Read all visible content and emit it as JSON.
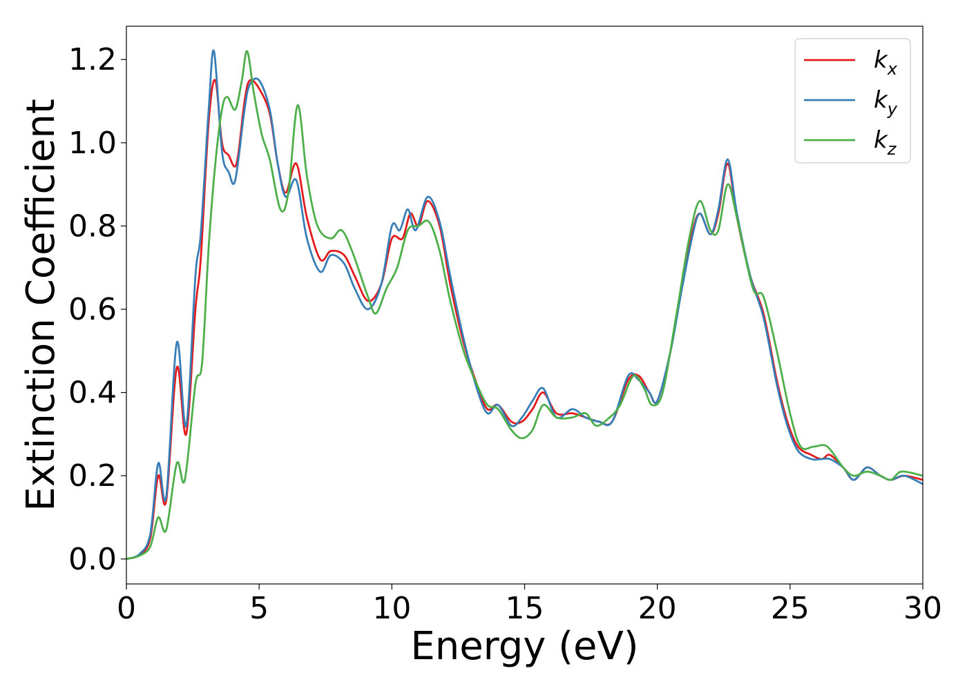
{
  "chart_data": {
    "type": "line",
    "title": "",
    "xlabel": "Energy (eV)",
    "ylabel": "Extinction Coefficient",
    "xlim": [
      0,
      30
    ],
    "ylim": [
      -0.06,
      1.28
    ],
    "xticks": [
      0,
      5,
      10,
      15,
      20,
      25,
      30
    ],
    "xtick_labels": [
      "0",
      "5",
      "10",
      "15",
      "20",
      "25",
      "30"
    ],
    "yticks": [
      0.0,
      0.2,
      0.4,
      0.6,
      0.8,
      1.0,
      1.2
    ],
    "ytick_labels": [
      "0.0",
      "0.2",
      "0.4",
      "0.6",
      "0.8",
      "1.0",
      "1.2"
    ],
    "grid": false,
    "legend_position": "top-right",
    "series": [
      {
        "name": "k_x",
        "label_base": "k",
        "label_sub": "x",
        "color": "#e41a1c",
        "points": [
          [
            0,
            0
          ],
          [
            0.5,
            0.01
          ],
          [
            0.9,
            0.05
          ],
          [
            1.2,
            0.2
          ],
          [
            1.5,
            0.14
          ],
          [
            1.9,
            0.46
          ],
          [
            2.25,
            0.3
          ],
          [
            2.6,
            0.6
          ],
          [
            2.8,
            0.72
          ],
          [
            3.1,
            1.05
          ],
          [
            3.35,
            1.15
          ],
          [
            3.6,
            1.0
          ],
          [
            3.85,
            0.97
          ],
          [
            4.15,
            0.95
          ],
          [
            4.45,
            1.1
          ],
          [
            4.65,
            1.15
          ],
          [
            5.0,
            1.13
          ],
          [
            5.4,
            1.07
          ],
          [
            5.7,
            0.95
          ],
          [
            6.0,
            0.88
          ],
          [
            6.4,
            0.95
          ],
          [
            6.8,
            0.82
          ],
          [
            7.3,
            0.72
          ],
          [
            7.7,
            0.74
          ],
          [
            8.2,
            0.73
          ],
          [
            8.6,
            0.68
          ],
          [
            9.1,
            0.62
          ],
          [
            9.6,
            0.66
          ],
          [
            10.0,
            0.77
          ],
          [
            10.4,
            0.77
          ],
          [
            10.7,
            0.83
          ],
          [
            11.0,
            0.8
          ],
          [
            11.35,
            0.86
          ],
          [
            11.8,
            0.8
          ],
          [
            12.2,
            0.66
          ],
          [
            12.7,
            0.52
          ],
          [
            13.2,
            0.42
          ],
          [
            13.6,
            0.36
          ],
          [
            14.0,
            0.37
          ],
          [
            14.5,
            0.33
          ],
          [
            14.9,
            0.33
          ],
          [
            15.3,
            0.36
          ],
          [
            15.7,
            0.4
          ],
          [
            16.2,
            0.35
          ],
          [
            16.8,
            0.35
          ],
          [
            17.3,
            0.34
          ],
          [
            17.8,
            0.33
          ],
          [
            18.3,
            0.33
          ],
          [
            18.9,
            0.43
          ],
          [
            19.3,
            0.44
          ],
          [
            19.7,
            0.4
          ],
          [
            20.0,
            0.38
          ],
          [
            20.5,
            0.5
          ],
          [
            20.9,
            0.65
          ],
          [
            21.3,
            0.78
          ],
          [
            21.6,
            0.83
          ],
          [
            22.0,
            0.78
          ],
          [
            22.3,
            0.83
          ],
          [
            22.65,
            0.95
          ],
          [
            23.0,
            0.82
          ],
          [
            23.5,
            0.68
          ],
          [
            24.0,
            0.59
          ],
          [
            24.5,
            0.43
          ],
          [
            24.9,
            0.33
          ],
          [
            25.3,
            0.27
          ],
          [
            25.8,
            0.25
          ],
          [
            26.2,
            0.24
          ],
          [
            26.5,
            0.25
          ],
          [
            27.0,
            0.22
          ],
          [
            27.4,
            0.19
          ],
          [
            27.9,
            0.22
          ],
          [
            28.4,
            0.2
          ],
          [
            28.8,
            0.19
          ],
          [
            29.3,
            0.2
          ],
          [
            30,
            0.19
          ]
        ]
      },
      {
        "name": "k_y",
        "label_base": "k",
        "label_sub": "y",
        "color": "#377eb8",
        "points": [
          [
            0,
            0
          ],
          [
            0.5,
            0.012
          ],
          [
            0.9,
            0.06
          ],
          [
            1.2,
            0.23
          ],
          [
            1.5,
            0.15
          ],
          [
            1.9,
            0.52
          ],
          [
            2.25,
            0.32
          ],
          [
            2.6,
            0.68
          ],
          [
            2.8,
            0.78
          ],
          [
            3.1,
            1.08
          ],
          [
            3.3,
            1.22
          ],
          [
            3.6,
            0.98
          ],
          [
            3.85,
            0.93
          ],
          [
            4.1,
            0.91
          ],
          [
            4.45,
            1.08
          ],
          [
            4.65,
            1.14
          ],
          [
            5.0,
            1.15
          ],
          [
            5.4,
            1.08
          ],
          [
            5.7,
            0.95
          ],
          [
            6.0,
            0.87
          ],
          [
            6.4,
            0.91
          ],
          [
            6.8,
            0.77
          ],
          [
            7.3,
            0.69
          ],
          [
            7.7,
            0.73
          ],
          [
            8.2,
            0.71
          ],
          [
            8.6,
            0.65
          ],
          [
            9.1,
            0.6
          ],
          [
            9.6,
            0.66
          ],
          [
            10.0,
            0.8
          ],
          [
            10.3,
            0.79
          ],
          [
            10.6,
            0.84
          ],
          [
            10.9,
            0.79
          ],
          [
            11.35,
            0.87
          ],
          [
            11.8,
            0.81
          ],
          [
            12.2,
            0.68
          ],
          [
            12.7,
            0.53
          ],
          [
            13.2,
            0.41
          ],
          [
            13.6,
            0.35
          ],
          [
            14.0,
            0.37
          ],
          [
            14.5,
            0.32
          ],
          [
            14.9,
            0.34
          ],
          [
            15.3,
            0.38
          ],
          [
            15.7,
            0.41
          ],
          [
            16.2,
            0.34
          ],
          [
            16.8,
            0.36
          ],
          [
            17.3,
            0.34
          ],
          [
            17.8,
            0.33
          ],
          [
            18.3,
            0.33
          ],
          [
            18.9,
            0.44
          ],
          [
            19.3,
            0.43
          ],
          [
            19.7,
            0.4
          ],
          [
            20.0,
            0.38
          ],
          [
            20.5,
            0.5
          ],
          [
            20.9,
            0.64
          ],
          [
            21.3,
            0.77
          ],
          [
            21.6,
            0.83
          ],
          [
            22.0,
            0.78
          ],
          [
            22.3,
            0.84
          ],
          [
            22.65,
            0.96
          ],
          [
            23.0,
            0.83
          ],
          [
            23.5,
            0.68
          ],
          [
            24.0,
            0.58
          ],
          [
            24.5,
            0.42
          ],
          [
            24.9,
            0.32
          ],
          [
            25.3,
            0.26
          ],
          [
            25.8,
            0.24
          ],
          [
            26.2,
            0.24
          ],
          [
            26.5,
            0.24
          ],
          [
            27.0,
            0.22
          ],
          [
            27.4,
            0.19
          ],
          [
            27.9,
            0.22
          ],
          [
            28.4,
            0.2
          ],
          [
            28.8,
            0.19
          ],
          [
            29.3,
            0.2
          ],
          [
            30,
            0.18
          ]
        ]
      },
      {
        "name": "k_z",
        "label_base": "k",
        "label_sub": "z",
        "color": "#4daf4a",
        "points": [
          [
            0,
            0
          ],
          [
            0.5,
            0.008
          ],
          [
            0.9,
            0.03
          ],
          [
            1.2,
            0.1
          ],
          [
            1.5,
            0.07
          ],
          [
            1.9,
            0.23
          ],
          [
            2.2,
            0.19
          ],
          [
            2.6,
            0.42
          ],
          [
            2.85,
            0.47
          ],
          [
            3.1,
            0.75
          ],
          [
            3.35,
            0.95
          ],
          [
            3.6,
            1.08
          ],
          [
            3.8,
            1.11
          ],
          [
            4.1,
            1.08
          ],
          [
            4.35,
            1.15
          ],
          [
            4.55,
            1.22
          ],
          [
            4.8,
            1.12
          ],
          [
            5.1,
            1.02
          ],
          [
            5.4,
            0.96
          ],
          [
            5.8,
            0.84
          ],
          [
            6.1,
            0.88
          ],
          [
            6.45,
            1.09
          ],
          [
            6.8,
            0.92
          ],
          [
            7.2,
            0.8
          ],
          [
            7.7,
            0.77
          ],
          [
            8.1,
            0.79
          ],
          [
            8.5,
            0.74
          ],
          [
            9.1,
            0.63
          ],
          [
            9.4,
            0.59
          ],
          [
            9.8,
            0.65
          ],
          [
            10.2,
            0.7
          ],
          [
            10.6,
            0.79
          ],
          [
            11.0,
            0.8
          ],
          [
            11.4,
            0.81
          ],
          [
            11.8,
            0.74
          ],
          [
            12.2,
            0.62
          ],
          [
            12.7,
            0.5
          ],
          [
            13.2,
            0.42
          ],
          [
            13.6,
            0.37
          ],
          [
            14.0,
            0.36
          ],
          [
            14.5,
            0.31
          ],
          [
            14.9,
            0.29
          ],
          [
            15.3,
            0.31
          ],
          [
            15.7,
            0.37
          ],
          [
            16.2,
            0.34
          ],
          [
            16.8,
            0.34
          ],
          [
            17.3,
            0.35
          ],
          [
            17.7,
            0.32
          ],
          [
            18.2,
            0.34
          ],
          [
            18.6,
            0.37
          ],
          [
            19.1,
            0.44
          ],
          [
            19.5,
            0.41
          ],
          [
            19.8,
            0.37
          ],
          [
            20.2,
            0.4
          ],
          [
            20.7,
            0.58
          ],
          [
            21.2,
            0.77
          ],
          [
            21.6,
            0.86
          ],
          [
            22.0,
            0.79
          ],
          [
            22.3,
            0.79
          ],
          [
            22.65,
            0.9
          ],
          [
            23.0,
            0.82
          ],
          [
            23.6,
            0.65
          ],
          [
            24.0,
            0.63
          ],
          [
            24.5,
            0.5
          ],
          [
            25.0,
            0.35
          ],
          [
            25.4,
            0.27
          ],
          [
            25.9,
            0.27
          ],
          [
            26.4,
            0.27
          ],
          [
            27.0,
            0.22
          ],
          [
            27.4,
            0.2
          ],
          [
            27.9,
            0.21
          ],
          [
            28.4,
            0.2
          ],
          [
            28.8,
            0.19
          ],
          [
            29.2,
            0.21
          ],
          [
            30,
            0.2
          ]
        ]
      }
    ]
  }
}
